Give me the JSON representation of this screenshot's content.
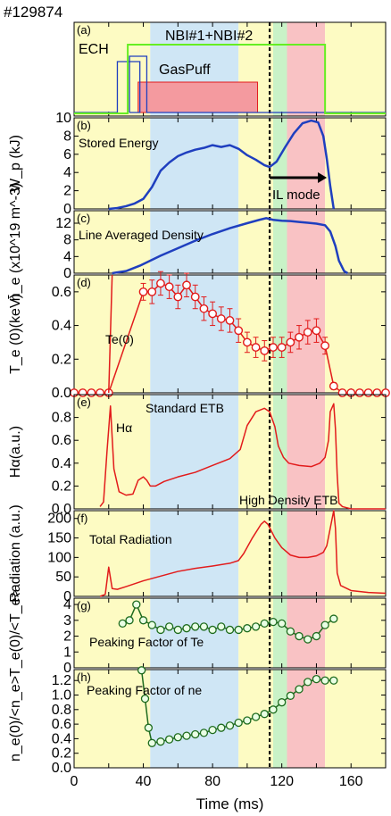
{
  "shot_label": "#129874",
  "colors": {
    "yellow_band": "#fdfbc3",
    "blue_band": "#cfe6f5",
    "green_band": "#c9f2c7",
    "red_band": "#f9c2c4",
    "blue_line": "#1f3fbf",
    "red_line": "#e21b1b",
    "green_line": "#1e6b1e",
    "nbi_green": "#66ee22",
    "gaspuff_fill": "#f49a9f"
  },
  "x_axis": {
    "label": "Time (ms)",
    "range": [
      0,
      180
    ],
    "ticks": [
      0,
      40,
      80,
      120,
      160
    ],
    "tick_labels": [
      "0",
      "40",
      "80",
      "120",
      "160"
    ]
  },
  "phase_bands": [
    {
      "from": 0,
      "to": 44,
      "color": "yellow"
    },
    {
      "from": 44,
      "to": 95,
      "color": "blue"
    },
    {
      "from": 95,
      "to": 115,
      "color": "yellow"
    },
    {
      "from": 115,
      "to": 123,
      "color": "green"
    },
    {
      "from": 123,
      "to": 145,
      "color": "red"
    },
    {
      "from": 145,
      "to": 180,
      "color": "yellow"
    }
  ],
  "il_mode_time": 113,
  "chart_data": [
    {
      "panel": "(a)",
      "type": "line",
      "labels": [
        "ECH",
        "NBI#1+NBI#2",
        "GasPuff"
      ],
      "ylim": [
        0,
        1
      ],
      "ech_on": [
        25,
        38
      ],
      "ech2_on": [
        32,
        42
      ],
      "nbi_on": [
        31,
        145
      ],
      "gaspuff_on": [
        37,
        106
      ]
    },
    {
      "panel": "(b)",
      "type": "line",
      "series_label": "Stored Energy",
      "ylabel": "W_p (kJ)",
      "ylim": [
        0,
        10
      ],
      "ticks": [
        0,
        2,
        4,
        6,
        8,
        10
      ],
      "annotation": "IL mode",
      "arrow_from": 113,
      "arrow_to": 146,
      "x": [
        20,
        25,
        30,
        35,
        40,
        45,
        50,
        55,
        60,
        65,
        70,
        75,
        80,
        85,
        90,
        95,
        100,
        105,
        110,
        113,
        117,
        122,
        127,
        132,
        137,
        141,
        144,
        146,
        148,
        150
      ],
      "y": [
        0,
        0.1,
        0.3,
        0.6,
        1.1,
        2.4,
        4.2,
        5.1,
        5.8,
        6.2,
        6.5,
        6.7,
        7.0,
        6.8,
        7.0,
        6.6,
        5.9,
        5.4,
        4.8,
        4.6,
        5.2,
        6.8,
        8.3,
        9.4,
        9.7,
        9.5,
        8.0,
        5.5,
        2.5,
        0
      ]
    },
    {
      "panel": "(c)",
      "type": "line",
      "series_label": "Line Averaged Density",
      "ylabel": "n̄_e (x10^19 m^-3)",
      "ylim": [
        0,
        15
      ],
      "ticks": [
        0,
        4,
        8,
        12
      ],
      "x": [
        22,
        30,
        38,
        44,
        50,
        60,
        70,
        80,
        90,
        100,
        107,
        111,
        115,
        120,
        125,
        130,
        135,
        140,
        145,
        148,
        151,
        153,
        156,
        158
      ],
      "y": [
        0,
        0.5,
        1.8,
        3.0,
        4.2,
        6.0,
        7.8,
        9.4,
        10.8,
        12.0,
        12.8,
        13.2,
        12.8,
        12.6,
        12.5,
        12.3,
        12.1,
        11.9,
        11.5,
        10.0,
        6.5,
        3.0,
        0.5,
        0
      ]
    },
    {
      "panel": "(d)",
      "type": "scatter",
      "series_label": "Te(0)",
      "ylabel": "T_e (0)(keV)",
      "ylim": [
        0,
        0.7
      ],
      "ticks": [
        0.0,
        0.2,
        0.4,
        0.6
      ],
      "x": [
        0,
        5,
        10,
        15,
        20,
        40,
        45,
        50,
        55,
        60,
        65,
        70,
        75,
        80,
        85,
        90,
        95,
        100,
        105,
        110,
        115,
        120,
        125,
        130,
        135,
        140,
        145,
        150,
        155,
        160,
        165,
        170,
        175,
        180
      ],
      "y": [
        0,
        0,
        0,
        0,
        0,
        0.6,
        0.6,
        0.65,
        0.63,
        0.57,
        0.64,
        0.57,
        0.5,
        0.47,
        0.44,
        0.43,
        0.37,
        0.3,
        0.27,
        0.25,
        0.27,
        0.27,
        0.3,
        0.33,
        0.36,
        0.37,
        0.28,
        0.04,
        0,
        0,
        0,
        0,
        0,
        0
      ],
      "err": [
        0,
        0,
        0,
        0,
        0,
        0.05,
        0.07,
        0.07,
        0.07,
        0.07,
        0.07,
        0.07,
        0.07,
        0.07,
        0.07,
        0.07,
        0.07,
        0.06,
        0.06,
        0.06,
        0.06,
        0.06,
        0.06,
        0.07,
        0.07,
        0.07,
        0.05,
        0.02,
        0,
        0,
        0,
        0,
        0,
        0
      ]
    },
    {
      "panel": "(e)",
      "type": "line",
      "series_label": "Hα",
      "ylabel": "Hα(a.u.)",
      "ylim": [
        0,
        1
      ],
      "ticks": [
        0.0,
        0.2,
        0.4,
        0.6,
        0.8
      ],
      "labels": [
        "Standard ETB",
        "High Density ETB"
      ],
      "x": [
        15,
        17,
        19,
        21,
        23,
        26,
        30,
        34,
        37,
        40,
        42,
        44,
        47,
        52,
        60,
        70,
        80,
        90,
        96,
        100,
        105,
        110,
        113,
        116,
        118,
        121,
        124,
        130,
        137,
        142,
        145,
        147,
        148,
        150,
        151,
        152,
        153,
        155,
        160,
        180
      ],
      "y": [
        0.02,
        0.06,
        0.5,
        0.9,
        0.35,
        0.15,
        0.12,
        0.13,
        0.25,
        0.28,
        0.25,
        0.2,
        0.2,
        0.24,
        0.28,
        0.32,
        0.38,
        0.44,
        0.52,
        0.73,
        0.85,
        0.88,
        0.85,
        0.72,
        0.55,
        0.45,
        0.4,
        0.38,
        0.37,
        0.4,
        0.45,
        0.6,
        0.85,
        0.92,
        0.7,
        0.3,
        0.05,
        0.02,
        0.0,
        0.0
      ]
    },
    {
      "panel": "(f)",
      "type": "line",
      "series_label": "Total Radiation",
      "ylabel": "Radiation (a.u.)",
      "ylim": [
        0,
        220
      ],
      "ticks": [
        0,
        50,
        100,
        150,
        200
      ],
      "x": [
        15,
        18,
        20,
        22,
        25,
        30,
        40,
        50,
        60,
        70,
        80,
        90,
        95,
        98,
        103,
        108,
        110,
        112,
        116,
        120,
        125,
        130,
        135,
        140,
        144,
        146,
        148,
        150,
        151,
        152,
        154,
        160,
        170,
        180
      ],
      "y": [
        0,
        5,
        75,
        20,
        18,
        25,
        40,
        52,
        64,
        72,
        78,
        85,
        92,
        110,
        150,
        185,
        193,
        185,
        150,
        125,
        106,
        100,
        100,
        104,
        113,
        130,
        175,
        225,
        175,
        60,
        28,
        15,
        10,
        8
      ]
    },
    {
      "panel": "(g)",
      "type": "line",
      "series_label": "Peaking Factor of Te",
      "ylabel": "T_e(0)/<T_e>",
      "ylim": [
        0,
        4.4
      ],
      "ticks": [
        0,
        1,
        2,
        3,
        4
      ],
      "x": [
        28,
        32,
        36,
        40,
        45,
        50,
        55,
        60,
        65,
        70,
        75,
        80,
        85,
        90,
        95,
        100,
        105,
        110,
        115,
        120,
        125,
        130,
        135,
        140,
        145,
        150
      ],
      "y": [
        2.8,
        3.0,
        4.0,
        3.0,
        2.7,
        2.4,
        2.6,
        2.4,
        2.5,
        2.6,
        2.6,
        2.4,
        2.6,
        2.4,
        2.4,
        2.5,
        2.6,
        2.8,
        2.9,
        2.8,
        2.3,
        2.0,
        1.8,
        2.0,
        2.7,
        3.1
      ]
    },
    {
      "panel": "(h)",
      "type": "line",
      "series_label": "Peaking Factor of ne",
      "ylabel": "n_e(0)/<n_e>",
      "ylim": [
        0,
        1.35
      ],
      "ticks": [
        0.0,
        0.2,
        0.4,
        0.6,
        0.8,
        1.0,
        1.2
      ],
      "x": [
        39,
        41,
        43,
        45,
        50,
        55,
        60,
        65,
        70,
        75,
        80,
        85,
        90,
        95,
        100,
        105,
        110,
        115,
        120,
        125,
        130,
        135,
        140,
        145,
        150
      ],
      "y": [
        1.34,
        0.95,
        0.55,
        0.34,
        0.36,
        0.39,
        0.42,
        0.44,
        0.46,
        0.48,
        0.52,
        0.55,
        0.58,
        0.62,
        0.65,
        0.7,
        0.74,
        0.8,
        0.9,
        0.99,
        1.08,
        1.18,
        1.22,
        1.2,
        1.2
      ]
    }
  ]
}
